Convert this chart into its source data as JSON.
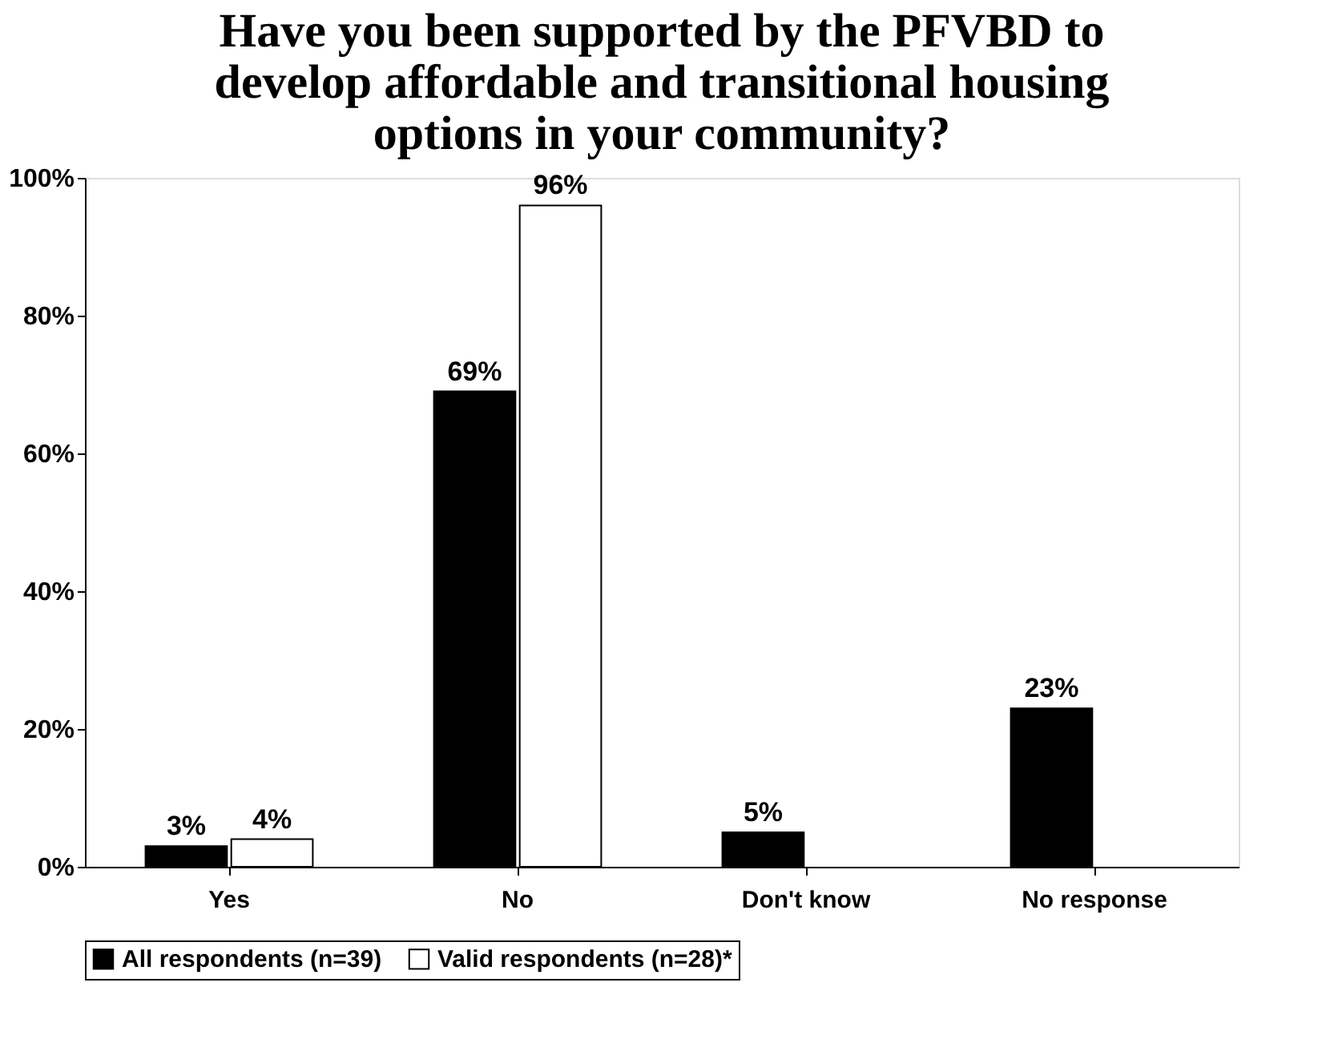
{
  "chart_data": {
    "type": "bar",
    "title": "Have you been supported by the PFVBD to develop affordable and transitional housing options in your community?",
    "categories": [
      "Yes",
      "No",
      "Don't know",
      "No response"
    ],
    "series": [
      {
        "name": "All respondents (n=39)",
        "color": "#000000",
        "values": [
          3,
          69,
          5,
          23
        ],
        "value_labels": [
          "3%",
          "69%",
          "5%",
          "23%"
        ]
      },
      {
        "name": "Valid respondents (n=28)*",
        "color": "#ffffff",
        "values": [
          4,
          96,
          null,
          null
        ],
        "value_labels": [
          "4%",
          "96%",
          null,
          null
        ]
      }
    ],
    "ylim": [
      0,
      100
    ],
    "yticks": [
      {
        "value": 0,
        "label": "0%"
      },
      {
        "value": 20,
        "label": "20%"
      },
      {
        "value": 40,
        "label": "40%"
      },
      {
        "value": 60,
        "label": "60%"
      },
      {
        "value": 80,
        "label": "80%"
      },
      {
        "value": 100,
        "label": "100%"
      }
    ],
    "grid": false,
    "legend": "bottom"
  }
}
